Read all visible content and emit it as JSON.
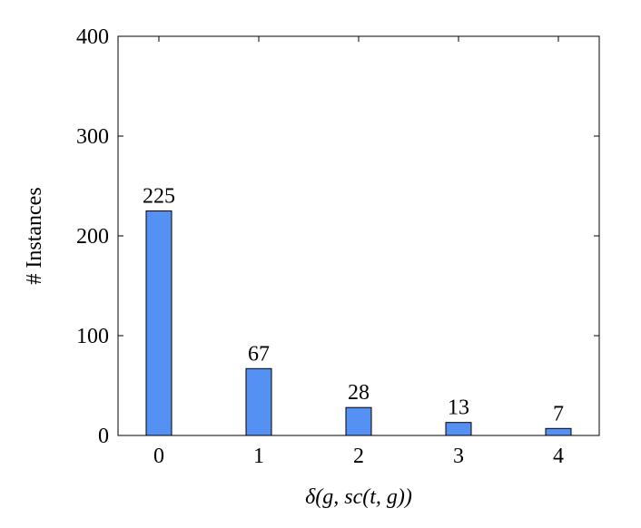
{
  "chart_data": {
    "type": "bar",
    "x_label": "δ(g, sc(t, g))",
    "y_label": "# Instances",
    "categories": [
      "0",
      "1",
      "2",
      "3",
      "4"
    ],
    "values": [
      225,
      67,
      28,
      13,
      7
    ],
    "color": "#5591f2",
    "ylim": [
      0,
      400
    ],
    "yticks": [
      0,
      100,
      200,
      300,
      400
    ],
    "show_value_labels": true
  }
}
